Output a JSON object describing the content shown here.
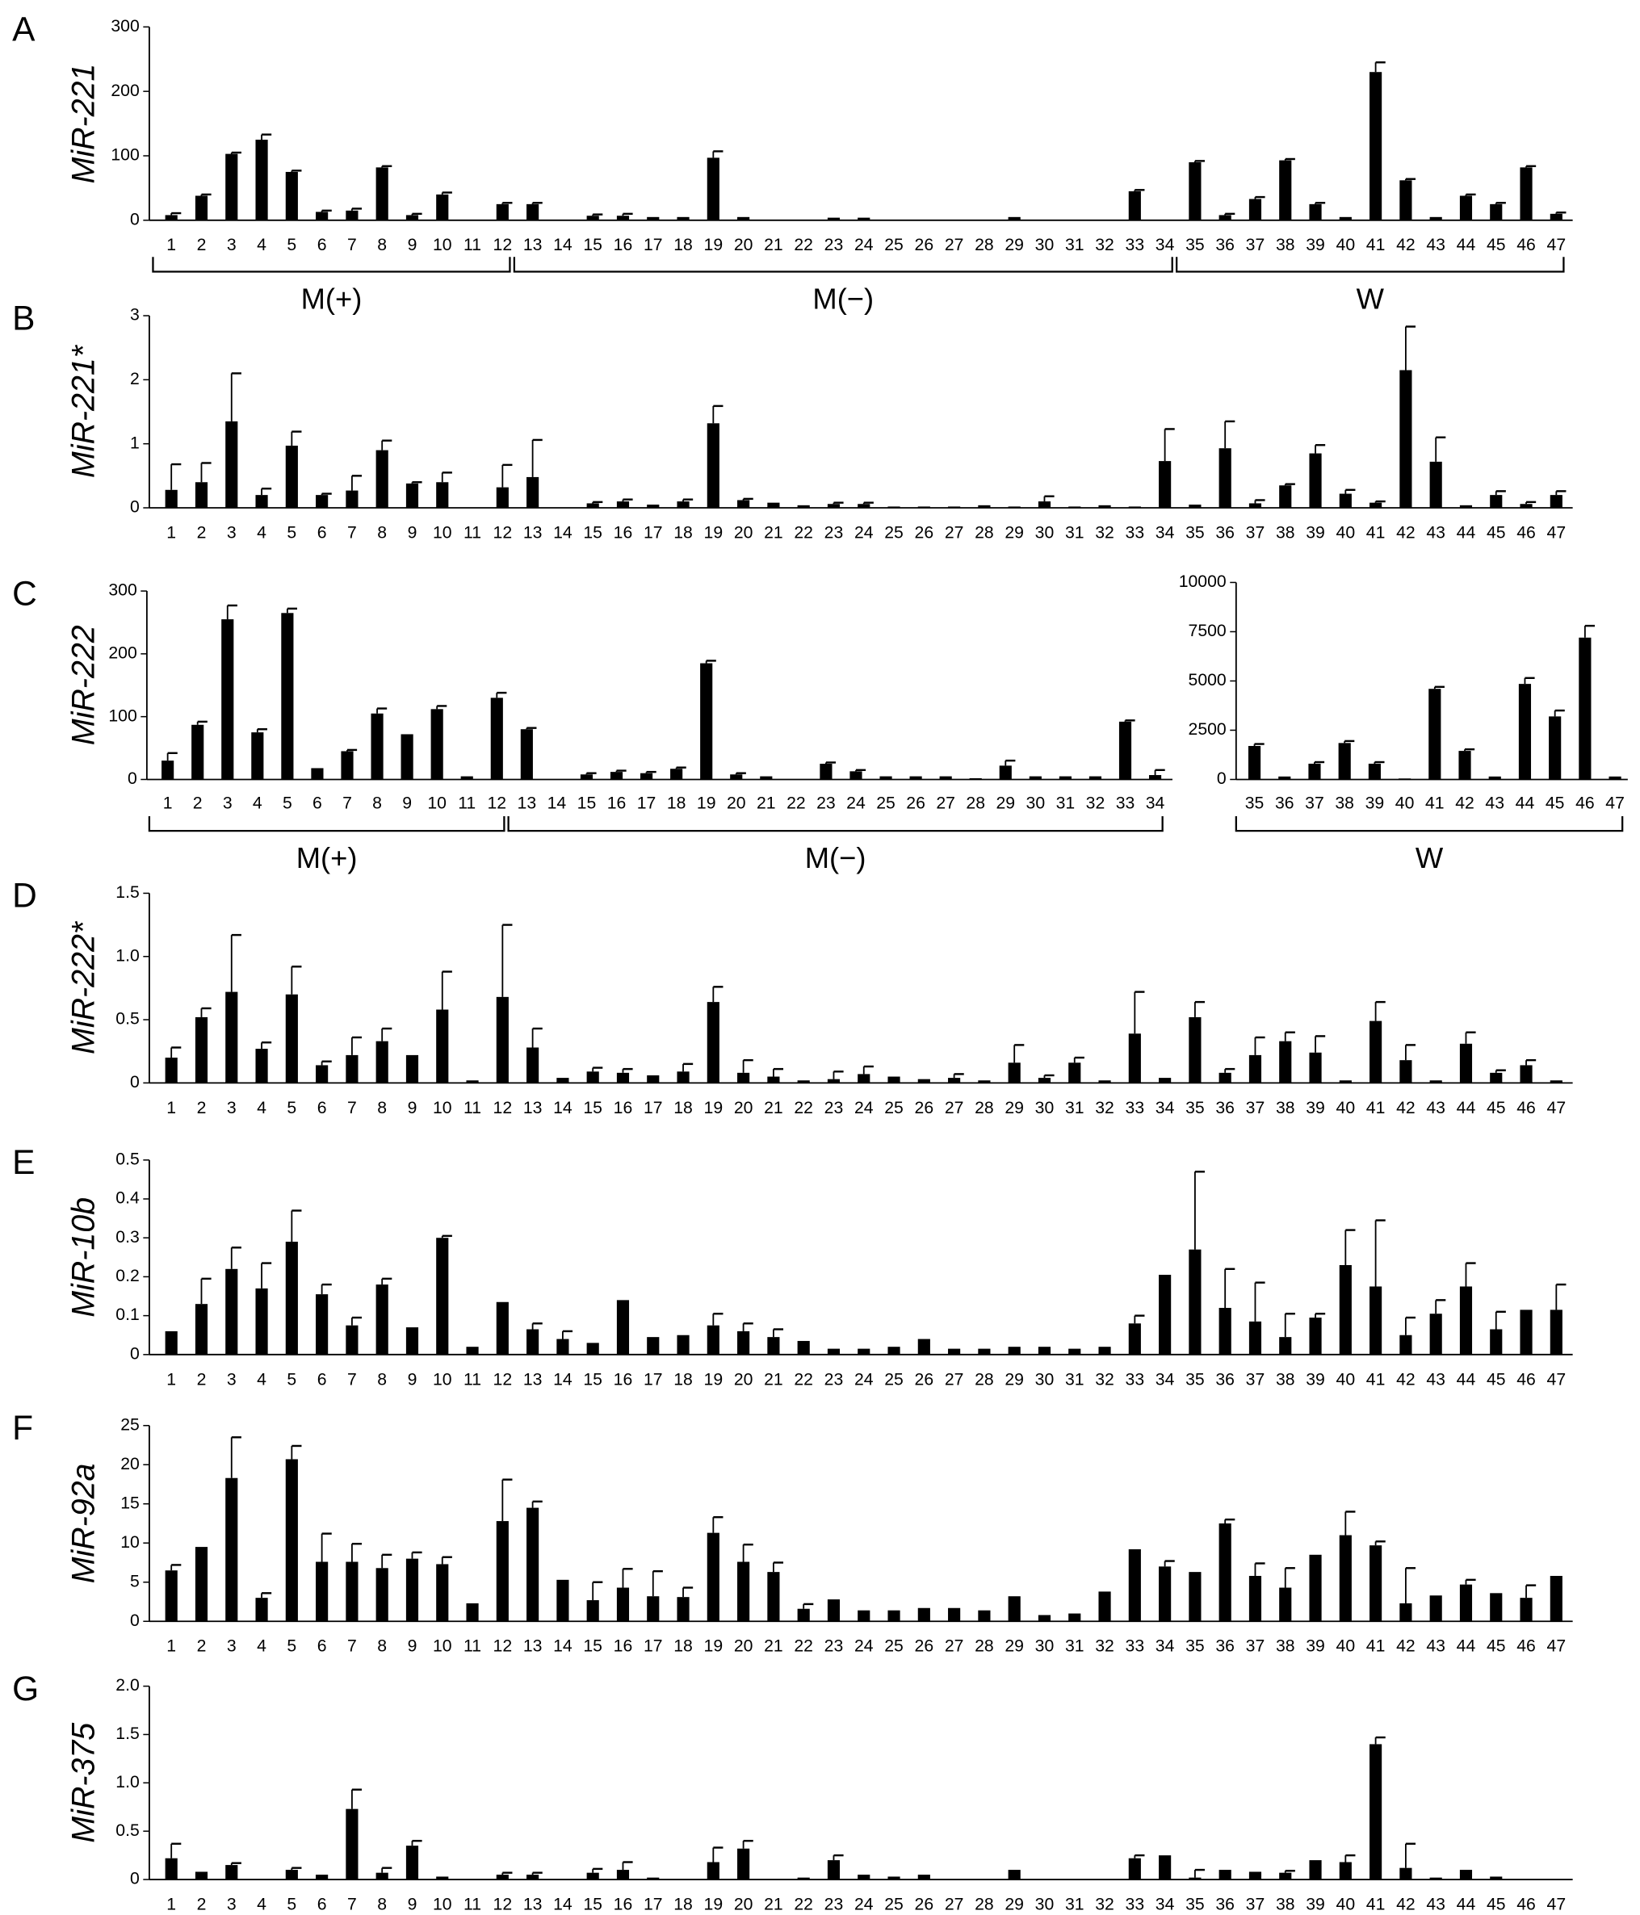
{
  "chart_data": [
    {
      "type": "bar",
      "panel": "A",
      "ylabel": "MiR-221",
      "color": "#000000",
      "categories": [
        "1",
        "2",
        "3",
        "4",
        "5",
        "6",
        "7",
        "8",
        "9",
        "10",
        "11",
        "12",
        "13",
        "14",
        "15",
        "16",
        "17",
        "18",
        "19",
        "20",
        "21",
        "22",
        "23",
        "24",
        "25",
        "26",
        "27",
        "28",
        "29",
        "30",
        "31",
        "32",
        "33",
        "34",
        "35",
        "36",
        "37",
        "38",
        "39",
        "40",
        "41",
        "42",
        "43",
        "44",
        "45",
        "46",
        "47"
      ],
      "values": [
        8,
        38,
        103,
        125,
        75,
        13,
        15,
        82,
        8,
        40,
        0,
        25,
        25,
        0,
        7,
        7,
        5,
        5,
        97,
        5,
        0,
        0,
        4,
        4,
        0,
        0,
        0,
        0,
        5,
        0,
        0,
        0,
        45,
        0,
        90,
        8,
        33,
        93,
        25,
        5,
        230,
        62,
        5,
        38,
        25,
        82,
        10
      ],
      "errors": [
        3,
        2,
        2,
        8,
        2,
        2,
        3,
        2,
        2,
        3,
        null,
        2,
        2,
        null,
        2,
        3,
        null,
        null,
        10,
        null,
        null,
        null,
        null,
        null,
        null,
        null,
        null,
        null,
        null,
        null,
        null,
        null,
        2,
        null,
        2,
        2,
        3,
        2,
        2,
        null,
        15,
        2,
        null,
        2,
        2,
        2,
        2
      ],
      "ylim": [
        0,
        300
      ],
      "yticks": [
        0,
        100,
        200,
        300
      ],
      "groups": [
        {
          "label": "M(+)",
          "first": "1",
          "last": "12"
        },
        {
          "label": "M(−)",
          "first": "13",
          "last": "34"
        },
        {
          "label": "W",
          "first": "35",
          "last": "47"
        }
      ]
    },
    {
      "type": "bar",
      "panel": "B",
      "ylabel": "MiR-221*",
      "color": "#000000",
      "categories": [
        "1",
        "2",
        "3",
        "4",
        "5",
        "6",
        "7",
        "8",
        "9",
        "10",
        "11",
        "12",
        "13",
        "14",
        "15",
        "16",
        "17",
        "18",
        "19",
        "20",
        "21",
        "22",
        "23",
        "24",
        "25",
        "26",
        "27",
        "28",
        "29",
        "30",
        "31",
        "32",
        "33",
        "34",
        "35",
        "36",
        "37",
        "38",
        "39",
        "40",
        "41",
        "42",
        "43",
        "44",
        "45",
        "46",
        "47"
      ],
      "values": [
        0.28,
        0.4,
        1.35,
        0.2,
        0.97,
        0.2,
        0.27,
        0.9,
        0.38,
        0.4,
        0,
        0.32,
        0.48,
        0,
        0.07,
        0.1,
        0.05,
        0.1,
        1.32,
        0.12,
        0.08,
        0.04,
        0.06,
        0.06,
        0.02,
        0.02,
        0.02,
        0.04,
        0.02,
        0.1,
        0.02,
        0.04,
        0.02,
        0.73,
        0.05,
        0.93,
        0.07,
        0.35,
        0.85,
        0.22,
        0.08,
        2.15,
        0.72,
        0.04,
        0.2,
        0.06,
        0.2
      ],
      "errors": [
        0.4,
        0.3,
        0.75,
        0.1,
        0.22,
        0.02,
        0.23,
        0.15,
        0.02,
        0.15,
        null,
        0.35,
        0.58,
        null,
        0.02,
        0.03,
        null,
        0.03,
        0.27,
        0.02,
        null,
        null,
        0.02,
        0.02,
        null,
        null,
        null,
        null,
        null,
        0.08,
        null,
        null,
        null,
        0.5,
        null,
        0.42,
        0.05,
        0.02,
        0.13,
        0.06,
        0.02,
        0.68,
        0.38,
        null,
        0.06,
        0.03,
        0.06
      ],
      "ylim": [
        0,
        3
      ],
      "yticks": [
        0,
        1,
        2,
        3
      ]
    },
    {
      "type": "bar",
      "panel": "C",
      "ylabel": "MiR-222",
      "color": "#000000",
      "categories": [
        "1",
        "2",
        "3",
        "4",
        "5",
        "6",
        "7",
        "8",
        "9",
        "10",
        "11",
        "12",
        "13",
        "14",
        "15",
        "16",
        "17",
        "18",
        "19",
        "20",
        "21",
        "22",
        "23",
        "24",
        "25",
        "26",
        "27",
        "28",
        "29",
        "30",
        "31",
        "32",
        "33",
        "34"
      ],
      "values": [
        30,
        87,
        255,
        75,
        265,
        18,
        45,
        105,
        72,
        112,
        5,
        130,
        80,
        0,
        8,
        12,
        10,
        17,
        185,
        8,
        5,
        0,
        25,
        13,
        5,
        5,
        5,
        2,
        22,
        5,
        5,
        5,
        92,
        7
      ],
      "errors": [
        12,
        5,
        22,
        5,
        7,
        null,
        2,
        8,
        null,
        5,
        null,
        8,
        2,
        null,
        2,
        2,
        2,
        2,
        4,
        2,
        null,
        null,
        2,
        2,
        null,
        null,
        null,
        null,
        8,
        null,
        null,
        null,
        2,
        8
      ],
      "ylim": [
        0,
        300
      ],
      "yticks": [
        0,
        100,
        200,
        300
      ],
      "groups": [
        {
          "label": "M(+)",
          "first": "1",
          "last": "12"
        },
        {
          "label": "M(−)",
          "first": "13",
          "last": "34"
        }
      ]
    },
    {
      "type": "bar",
      "color": "#000000",
      "categories": [
        "35",
        "36",
        "37",
        "38",
        "39",
        "40",
        "41",
        "42",
        "43",
        "44",
        "45",
        "46",
        "47"
      ],
      "values": [
        1700,
        150,
        800,
        1850,
        800,
        50,
        4600,
        1450,
        150,
        4850,
        3200,
        7200,
        150
      ],
      "errors": [
        100,
        null,
        80,
        100,
        80,
        null,
        100,
        80,
        null,
        300,
        300,
        600,
        null
      ],
      "ylim": [
        0,
        10000
      ],
      "yticks": [
        0,
        2500,
        5000,
        7500,
        10000
      ],
      "groups": [
        {
          "label": "W",
          "first": "35",
          "last": "47"
        }
      ]
    },
    {
      "type": "bar",
      "panel": "D",
      "ylabel": "MiR-222*",
      "color": "#000000",
      "categories": [
        "1",
        "2",
        "3",
        "4",
        "5",
        "6",
        "7",
        "8",
        "9",
        "10",
        "11",
        "12",
        "13",
        "14",
        "15",
        "16",
        "17",
        "18",
        "19",
        "20",
        "21",
        "22",
        "23",
        "24",
        "25",
        "26",
        "27",
        "28",
        "29",
        "30",
        "31",
        "32",
        "33",
        "34",
        "35",
        "36",
        "37",
        "38",
        "39",
        "40",
        "41",
        "42",
        "43",
        "44",
        "45",
        "46",
        "47"
      ],
      "values": [
        0.2,
        0.52,
        0.72,
        0.27,
        0.7,
        0.14,
        0.22,
        0.33,
        0.22,
        0.58,
        0.02,
        0.68,
        0.28,
        0.04,
        0.09,
        0.08,
        0.06,
        0.09,
        0.64,
        0.08,
        0.05,
        0.02,
        0.03,
        0.07,
        0.05,
        0.03,
        0.04,
        0.02,
        0.16,
        0.04,
        0.16,
        0.02,
        0.39,
        0.04,
        0.52,
        0.08,
        0.22,
        0.33,
        0.24,
        0.02,
        0.49,
        0.18,
        0.02,
        0.31,
        0.08,
        0.14,
        0.02
      ],
      "errors": [
        0.08,
        0.07,
        0.45,
        0.05,
        0.22,
        0.03,
        0.14,
        0.1,
        null,
        0.3,
        null,
        0.57,
        0.15,
        null,
        0.03,
        0.03,
        null,
        0.06,
        0.12,
        0.1,
        0.06,
        null,
        0.06,
        0.06,
        null,
        null,
        0.03,
        null,
        0.14,
        0.02,
        0.04,
        null,
        0.33,
        null,
        0.12,
        0.03,
        0.14,
        0.07,
        0.13,
        null,
        0.15,
        0.12,
        null,
        0.09,
        0.02,
        0.04,
        null
      ],
      "ylim": [
        0,
        1.5
      ],
      "yticks": [
        0,
        0.5,
        {
          "value": 1,
          "label": "1.0"
        },
        1.5
      ]
    },
    {
      "type": "bar",
      "panel": "E",
      "ylabel": "MiR-10b",
      "color": "#000000",
      "categories": [
        "1",
        "2",
        "3",
        "4",
        "5",
        "6",
        "7",
        "8",
        "9",
        "10",
        "11",
        "12",
        "13",
        "14",
        "15",
        "16",
        "17",
        "18",
        "19",
        "20",
        "21",
        "22",
        "23",
        "24",
        "25",
        "26",
        "27",
        "28",
        "29",
        "30",
        "31",
        "32",
        "33",
        "34",
        "35",
        "36",
        "37",
        "38",
        "39",
        "40",
        "41",
        "42",
        "43",
        "44",
        "45",
        "46",
        "47"
      ],
      "values": [
        0.06,
        0.13,
        0.22,
        0.17,
        0.29,
        0.155,
        0.075,
        0.18,
        0.07,
        0.3,
        0.02,
        0.135,
        0.065,
        0.04,
        0.03,
        0.14,
        0.045,
        0.05,
        0.075,
        0.06,
        0.045,
        0.035,
        0.015,
        0.015,
        0.02,
        0.04,
        0.015,
        0.015,
        0.02,
        0.02,
        0.015,
        0.02,
        0.08,
        0.205,
        0.27,
        0.12,
        0.085,
        0.045,
        0.095,
        0.23,
        0.175,
        0.05,
        0.105,
        0.175,
        0.065,
        0.115,
        0.115
      ],
      "errors": [
        null,
        0.065,
        0.055,
        0.065,
        0.08,
        0.025,
        0.02,
        0.015,
        null,
        0.005,
        null,
        null,
        0.015,
        0.02,
        null,
        null,
        null,
        null,
        0.03,
        0.02,
        0.02,
        null,
        null,
        null,
        null,
        null,
        null,
        null,
        null,
        null,
        null,
        null,
        0.02,
        null,
        0.2,
        0.1,
        0.1,
        0.06,
        0.01,
        0.09,
        0.17,
        0.045,
        0.035,
        0.06,
        0.045,
        null,
        0.065
      ],
      "ylim": [
        0,
        0.5
      ],
      "yticks": [
        0,
        0.1,
        0.2,
        0.3,
        0.4,
        0.5
      ]
    },
    {
      "type": "bar",
      "panel": "F",
      "ylabel": "MiR-92a",
      "color": "#000000",
      "categories": [
        "1",
        "2",
        "3",
        "4",
        "5",
        "6",
        "7",
        "8",
        "9",
        "10",
        "11",
        "12",
        "13",
        "14",
        "15",
        "16",
        "17",
        "18",
        "19",
        "20",
        "21",
        "22",
        "23",
        "24",
        "25",
        "26",
        "27",
        "28",
        "29",
        "30",
        "31",
        "32",
        "33",
        "34",
        "35",
        "36",
        "37",
        "38",
        "39",
        "40",
        "41",
        "42",
        "43",
        "44",
        "45",
        "46",
        "47"
      ],
      "values": [
        6.5,
        9.5,
        18.3,
        3,
        20.7,
        7.6,
        7.6,
        6.8,
        8,
        7.3,
        2.3,
        12.8,
        14.5,
        5.3,
        2.7,
        4.3,
        3.2,
        3.1,
        11.3,
        7.6,
        6.3,
        1.6,
        2.8,
        1.4,
        1.4,
        1.7,
        1.7,
        1.4,
        3.2,
        0.8,
        1,
        3.8,
        9.2,
        7,
        6.3,
        12.5,
        5.8,
        4.3,
        8.5,
        11,
        9.7,
        2.3,
        3.3,
        4.7,
        3.6,
        3,
        5.8
      ],
      "errors": [
        0.7,
        null,
        5.2,
        0.6,
        1.7,
        3.6,
        2.3,
        1.7,
        0.8,
        0.9,
        null,
        5.3,
        0.8,
        null,
        2.3,
        2.4,
        3.2,
        1.2,
        2,
        2.2,
        1.2,
        0.6,
        null,
        null,
        null,
        null,
        null,
        null,
        null,
        null,
        null,
        null,
        null,
        0.7,
        null,
        0.5,
        1.6,
        2.5,
        null,
        3,
        0.5,
        4.5,
        null,
        0.6,
        null,
        1.6,
        null
      ],
      "ylim": [
        0,
        25
      ],
      "yticks": [
        0,
        5,
        10,
        15,
        20,
        25
      ]
    },
    {
      "type": "bar",
      "panel": "G",
      "ylabel": "MiR-375",
      "color": "#000000",
      "categories": [
        "1",
        "2",
        "3",
        "4",
        "5",
        "6",
        "7",
        "8",
        "9",
        "10",
        "11",
        "12",
        "13",
        "14",
        "15",
        "16",
        "17",
        "18",
        "19",
        "20",
        "21",
        "22",
        "23",
        "24",
        "25",
        "26",
        "27",
        "28",
        "29",
        "30",
        "31",
        "32",
        "33",
        "34",
        "35",
        "36",
        "37",
        "38",
        "39",
        "40",
        "41",
        "42",
        "43",
        "44",
        "45",
        "46",
        "47"
      ],
      "values": [
        0.22,
        0.08,
        0.15,
        0,
        0.1,
        0.05,
        0.73,
        0.07,
        0.35,
        0.03,
        0,
        0.05,
        0.05,
        0,
        0.07,
        0.1,
        0.02,
        0,
        0.18,
        0.32,
        0,
        0.02,
        0.2,
        0.05,
        0.03,
        0.05,
        0,
        0,
        0.1,
        0,
        0,
        0,
        0.22,
        0.25,
        0.02,
        0.1,
        0.08,
        0.07,
        0.2,
        0.18,
        1.4,
        0.12,
        0.02,
        0.1,
        0.03,
        0,
        0
      ],
      "errors": [
        0.15,
        null,
        0.02,
        null,
        0.02,
        null,
        0.2,
        0.05,
        0.05,
        null,
        null,
        0.02,
        0.02,
        null,
        0.04,
        0.08,
        null,
        null,
        0.15,
        0.08,
        null,
        null,
        0.05,
        null,
        null,
        null,
        null,
        null,
        null,
        null,
        null,
        null,
        0.03,
        null,
        0.08,
        null,
        null,
        0.02,
        null,
        0.07,
        0.07,
        0.25,
        null,
        null,
        null,
        null,
        null
      ],
      "ylim": [
        0,
        2
      ],
      "yticks": [
        0,
        0.5,
        {
          "value": 1,
          "label": "1.0"
        },
        1.5,
        {
          "value": 2,
          "label": "2.0"
        }
      ]
    }
  ]
}
